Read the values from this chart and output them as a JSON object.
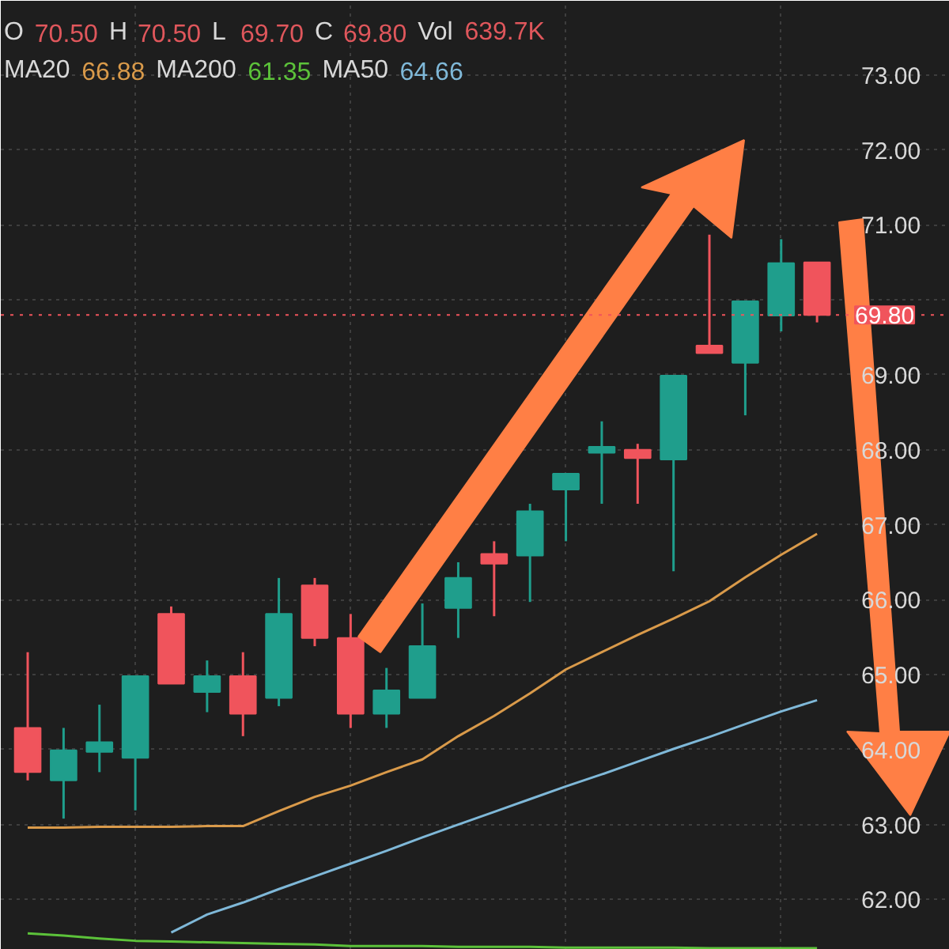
{
  "chart_data": {
    "type": "candlestick",
    "categories": [
      null,
      null,
      null,
      null,
      null,
      null,
      null,
      null,
      null,
      null,
      null,
      null,
      null,
      null,
      null,
      null,
      null,
      null,
      null,
      null,
      null,
      null,
      null
    ],
    "ohlc": [
      [
        64.29,
        65.3,
        63.59,
        63.7
      ],
      [
        63.59,
        64.29,
        63.08,
        63.99
      ],
      [
        63.97,
        64.6,
        63.7,
        64.1
      ],
      [
        63.89,
        64.98,
        63.19,
        64.98
      ],
      [
        65.81,
        65.91,
        64.88,
        64.88
      ],
      [
        64.77,
        65.19,
        64.5,
        64.98
      ],
      [
        64.98,
        65.3,
        64.18,
        64.48
      ],
      [
        64.69,
        66.29,
        64.58,
        65.81
      ],
      [
        66.19,
        66.29,
        65.38,
        65.49
      ],
      [
        65.49,
        65.81,
        64.29,
        64.48
      ],
      [
        64.48,
        65.09,
        64.29,
        64.79
      ],
      [
        64.69,
        65.95,
        64.69,
        65.38
      ],
      [
        65.89,
        66.5,
        65.49,
        66.29
      ],
      [
        66.61,
        66.78,
        65.78,
        66.48
      ],
      [
        66.59,
        67.28,
        65.97,
        67.18
      ],
      [
        67.47,
        67.68,
        66.78,
        67.68
      ],
      [
        67.96,
        68.38,
        67.28,
        68.04
      ],
      [
        68.0,
        68.08,
        67.28,
        67.89
      ],
      [
        67.87,
        68.99,
        66.38,
        68.99
      ],
      [
        69.39,
        70.87,
        69.29,
        69.29
      ],
      [
        69.16,
        69.98,
        68.46,
        69.98
      ],
      [
        69.79,
        70.81,
        69.58,
        70.49
      ],
      [
        70.5,
        70.5,
        69.7,
        69.8
      ]
    ],
    "colors": [
      "#f0545c",
      "#1f9e8c",
      "#1f9e8c",
      "#1f9e8c",
      "#f0545c",
      "#1f9e8c",
      "#f0545c",
      "#1f9e8c",
      "#f0545c",
      "#f0545c",
      "#1f9e8c",
      "#1f9e8c",
      "#1f9e8c",
      "#f0545c",
      "#1f9e8c",
      "#1f9e8c",
      "#1f9e8c",
      "#f0545c",
      "#1f9e8c",
      "#f0545c",
      "#1f9e8c",
      "#1f9e8c",
      "#f0545c"
    ],
    "series": [
      {
        "type": "line",
        "color": "#d99a4a",
        "values": [
          62.96,
          62.96,
          62.97,
          62.97,
          62.97,
          62.98,
          62.98,
          63.18,
          63.37,
          63.52,
          63.7,
          63.87,
          64.18,
          64.45,
          64.75,
          65.07,
          65.3,
          65.53,
          65.75,
          65.98,
          66.3,
          66.6,
          66.88
        ]
      },
      {
        "type": "line",
        "color": "#5cc23a",
        "values": [
          61.55,
          61.52,
          61.48,
          61.45,
          61.44,
          61.43,
          61.42,
          61.41,
          61.4,
          61.38,
          61.38,
          61.38,
          61.37,
          61.37,
          61.37,
          61.36,
          61.36,
          61.36,
          61.36,
          61.35,
          61.35,
          61.35,
          61.35
        ]
      },
      {
        "type": "line",
        "color": "#7fb8d8",
        "values": [
          null,
          null,
          null,
          null,
          61.56,
          61.8,
          61.96,
          62.14,
          62.31,
          62.48,
          62.65,
          62.83,
          63.0,
          63.17,
          63.34,
          63.51,
          63.67,
          63.84,
          64.01,
          64.17,
          64.34,
          64.51,
          64.66
        ]
      }
    ],
    "annotations": [
      "O 70.50 H 70.50 L 69.70 C 69.80 Vol 639.7K",
      "MA20 66.88 MA200 61.35 MA50 64.66"
    ],
    "ref_lines": [
      {
        "axis": "y",
        "value": 69.8,
        "label": "69.80",
        "color": "#f0545c",
        "line_style": "dotted"
      }
    ],
    "ylim": [
      61.33,
      73.99
    ],
    "yticks": [
      {
        "value": 62,
        "label": "62.00"
      },
      {
        "value": 63,
        "label": "63.00"
      },
      {
        "value": 64,
        "label": "64.00"
      },
      {
        "value": 65,
        "label": "65.00"
      },
      {
        "value": 66,
        "label": "66.00"
      },
      {
        "value": 67,
        "label": "67.00"
      },
      {
        "value": 68,
        "label": "68.00"
      },
      {
        "value": 69,
        "label": "69.00"
      },
      {
        "value": 70,
        "label": null
      },
      {
        "value": 71,
        "label": "71.00"
      },
      {
        "value": 72,
        "label": "72.00"
      },
      {
        "value": 73,
        "label": "73.00"
      }
    ],
    "tick_labels": "y",
    "grid": true,
    "line_style": "solid"
  }
}
